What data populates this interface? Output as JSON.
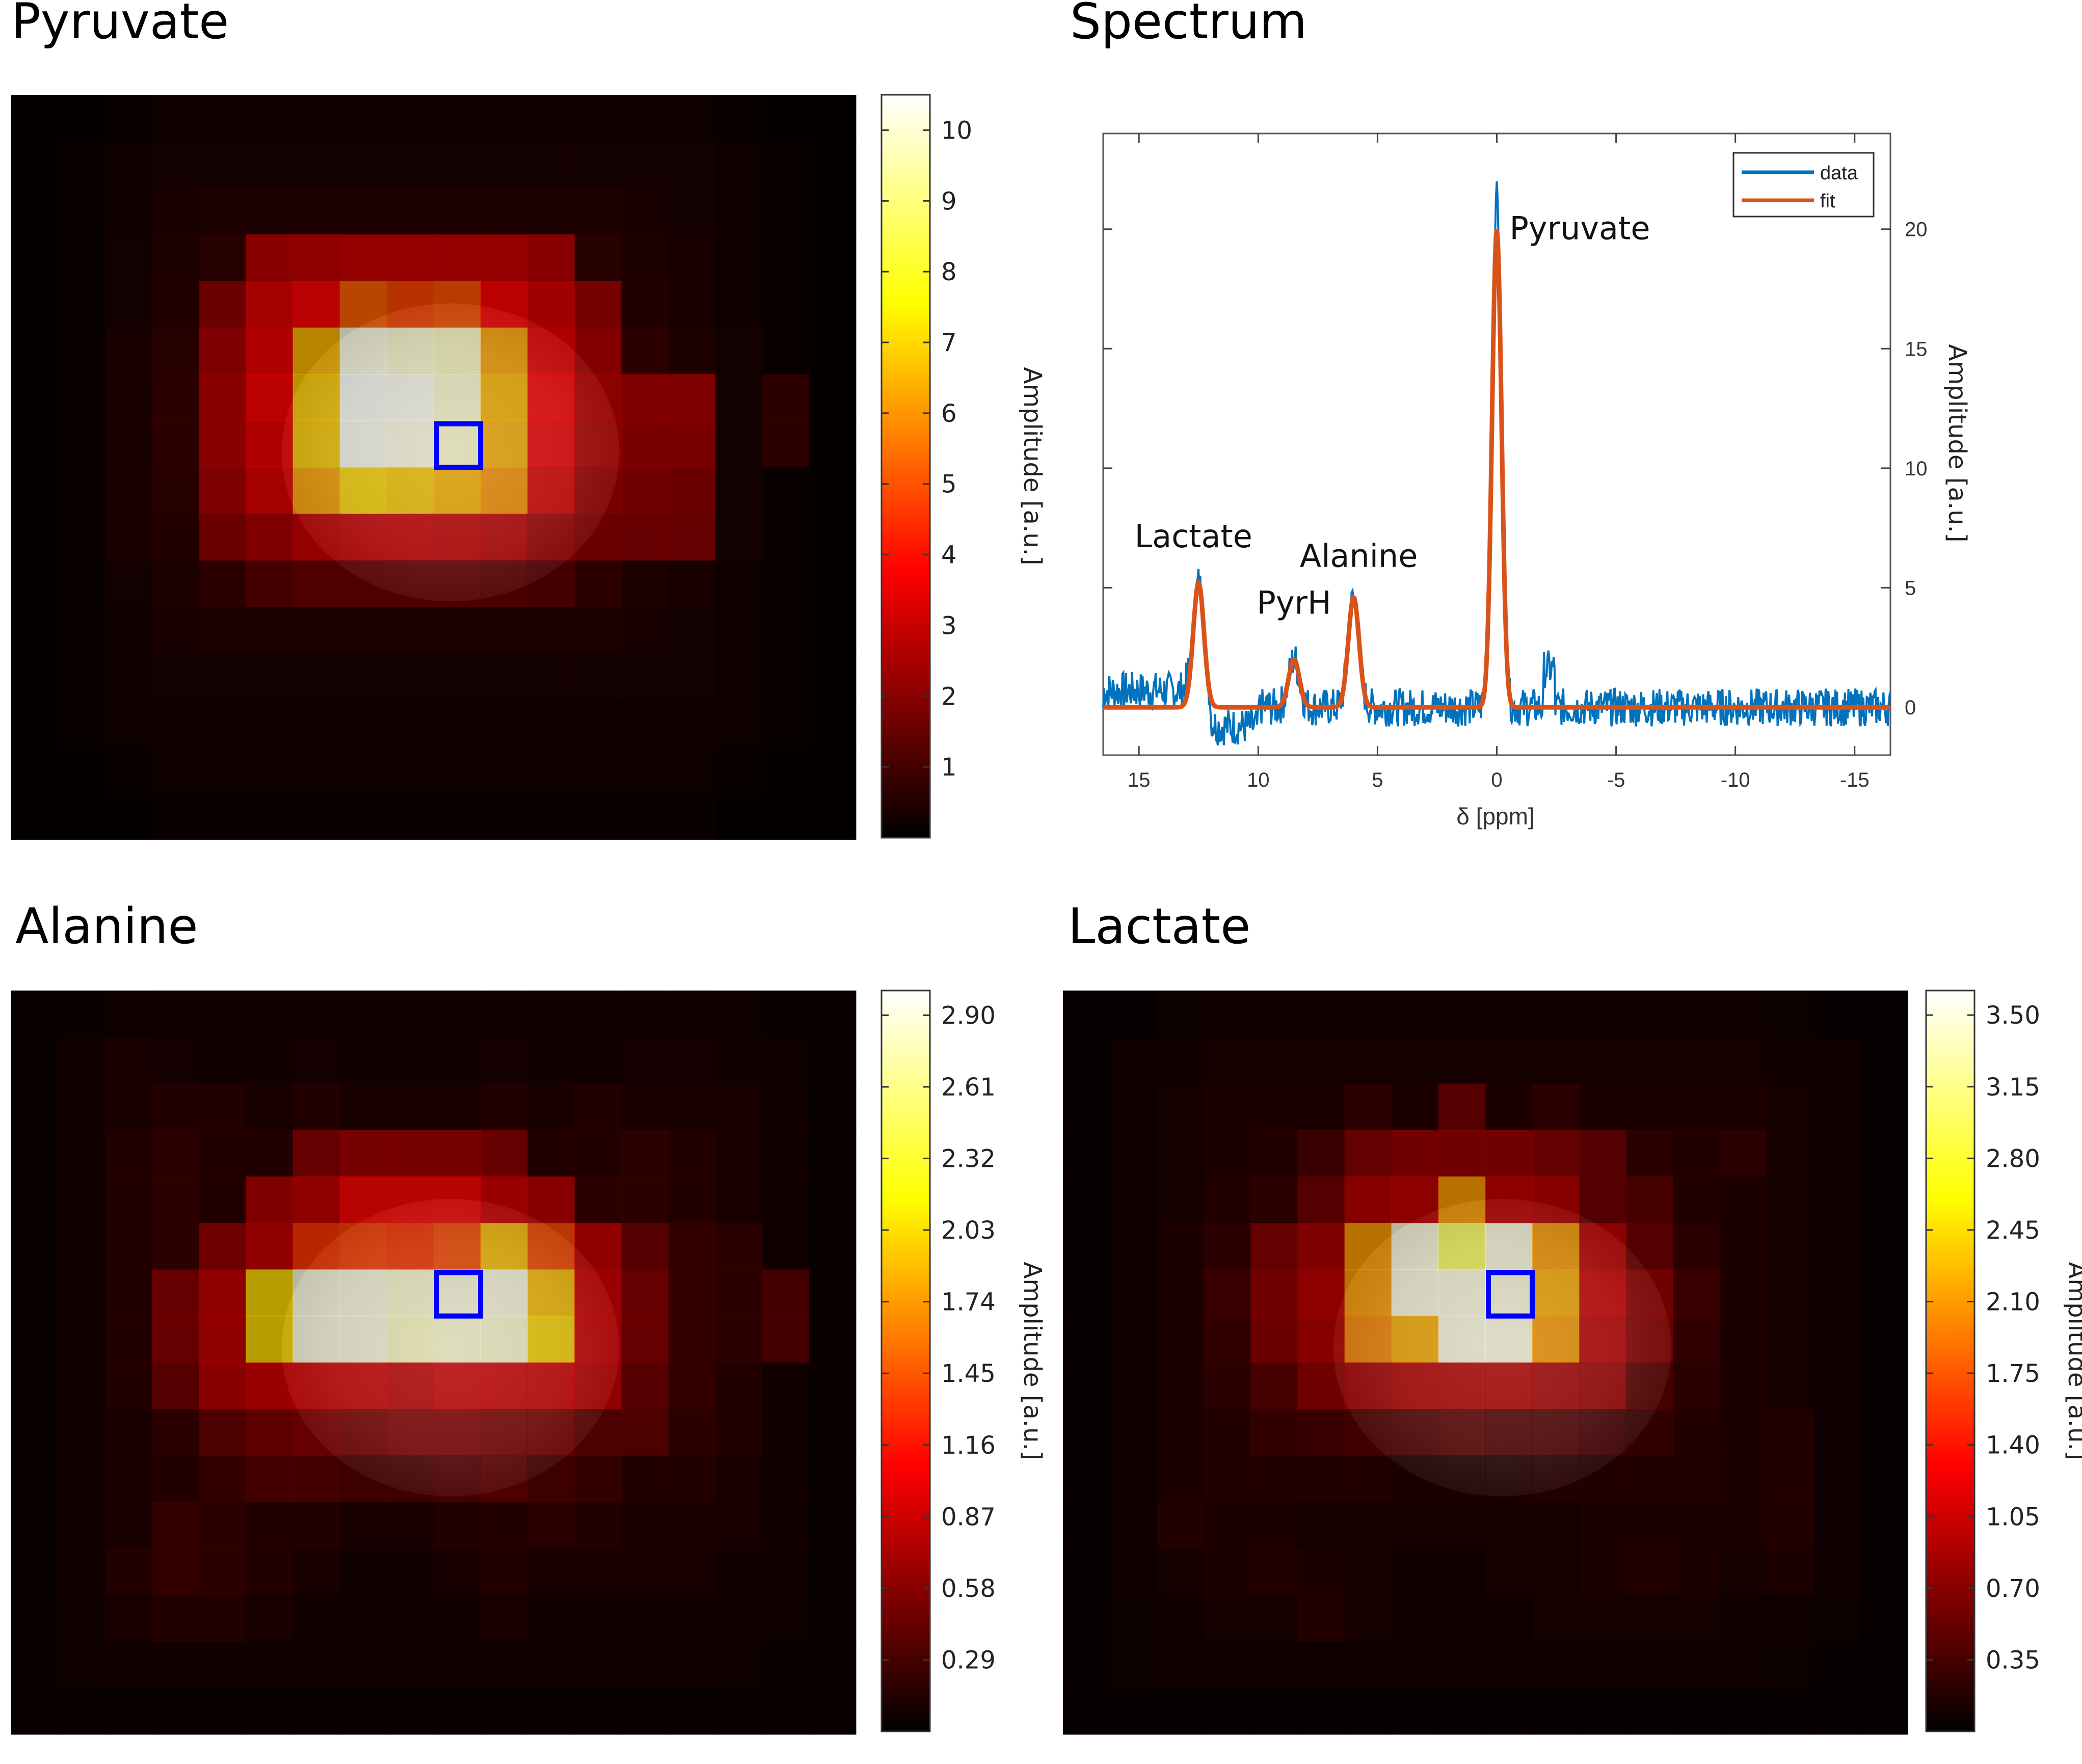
{
  "titles": {
    "pyruvate": "Pyruvate",
    "spectrum": "Spectrum",
    "alanine": "Alanine",
    "lactate": "Lactate"
  },
  "colorbar_label": "Amplitude [a.u.]",
  "colors": {
    "voxel_marker": "#0000ff",
    "data_line": "#0072bd",
    "fit_line": "#d95319"
  },
  "chart_data": [
    {
      "type": "heatmap",
      "title": "Pyruvate",
      "colormap": "hot",
      "colorbar": {
        "label": "Amplitude [a.u.]",
        "ticks": [
          "1",
          "2",
          "3",
          "4",
          "5",
          "6",
          "7",
          "8",
          "9",
          "10"
        ],
        "range": [
          0,
          10.5
        ]
      },
      "grid_size": [
        18,
        16
      ],
      "selected_voxel": {
        "col": 9,
        "row": 7
      },
      "values": [
        [
          0.1,
          0.1,
          0.2,
          0.3,
          0.3,
          0.3,
          0.3,
          0.3,
          0.3,
          0.3,
          0.3,
          0.3,
          0.3,
          0.3,
          0.3,
          0.2,
          0.1,
          0.1
        ],
        [
          0.1,
          0.2,
          0.3,
          0.4,
          0.4,
          0.4,
          0.4,
          0.4,
          0.4,
          0.4,
          0.4,
          0.4,
          0.4,
          0.4,
          0.4,
          0.3,
          0.2,
          0.1
        ],
        [
          0.1,
          0.2,
          0.3,
          0.5,
          0.6,
          0.6,
          0.6,
          0.6,
          0.6,
          0.6,
          0.6,
          0.6,
          0.6,
          0.5,
          0.4,
          0.3,
          0.2,
          0.1
        ],
        [
          0.1,
          0.2,
          0.4,
          0.6,
          0.8,
          2.8,
          2.9,
          3.0,
          3.0,
          3.0,
          3.0,
          2.8,
          0.8,
          0.6,
          0.5,
          0.3,
          0.2,
          0.1
        ],
        [
          0.1,
          0.2,
          0.4,
          0.7,
          2.2,
          3.4,
          3.8,
          5.2,
          4.8,
          5.0,
          3.8,
          3.3,
          2.4,
          0.7,
          0.5,
          0.3,
          0.2,
          0.1
        ],
        [
          0.1,
          0.2,
          0.5,
          0.8,
          2.6,
          3.6,
          6.5,
          10.2,
          10.0,
          9.8,
          6.2,
          3.6,
          2.7,
          0.9,
          0.6,
          0.4,
          0.2,
          0.1
        ],
        [
          0.1,
          0.2,
          0.5,
          0.9,
          2.8,
          3.8,
          6.8,
          10.4,
          10.3,
          10.0,
          6.5,
          3.8,
          2.9,
          2.6,
          2.6,
          0.4,
          0.9,
          0.1
        ],
        [
          0.1,
          0.2,
          0.5,
          0.9,
          2.8,
          3.6,
          6.8,
          10.3,
          10.2,
          9.9,
          6.4,
          3.7,
          2.8,
          2.5,
          2.5,
          0.4,
          0.9,
          0.1
        ],
        [
          0.1,
          0.2,
          0.5,
          0.8,
          2.6,
          3.4,
          6.2,
          7.0,
          6.8,
          6.5,
          6.0,
          3.4,
          2.5,
          2.3,
          2.2,
          0.4,
          0.2,
          0.1
        ],
        [
          0.1,
          0.2,
          0.5,
          0.7,
          2.2,
          2.6,
          3.0,
          3.1,
          3.1,
          3.0,
          2.9,
          2.5,
          2.2,
          2.1,
          2.1,
          0.4,
          0.2,
          0.1
        ],
        [
          0.1,
          0.2,
          0.4,
          0.6,
          0.9,
          1.4,
          1.6,
          1.6,
          1.6,
          1.6,
          1.5,
          1.4,
          0.9,
          0.6,
          0.5,
          0.3,
          0.2,
          0.1
        ],
        [
          0.1,
          0.2,
          0.3,
          0.5,
          0.6,
          0.6,
          0.6,
          0.6,
          0.6,
          0.6,
          0.6,
          0.6,
          0.6,
          0.5,
          0.4,
          0.3,
          0.2,
          0.1
        ],
        [
          0.1,
          0.2,
          0.3,
          0.4,
          0.4,
          0.4,
          0.4,
          0.4,
          0.4,
          0.4,
          0.4,
          0.4,
          0.4,
          0.4,
          0.4,
          0.3,
          0.2,
          0.1
        ],
        [
          0.1,
          0.2,
          0.3,
          0.3,
          0.3,
          0.3,
          0.3,
          0.3,
          0.3,
          0.3,
          0.3,
          0.3,
          0.3,
          0.3,
          0.3,
          0.3,
          0.2,
          0.1
        ],
        [
          0.1,
          0.1,
          0.2,
          0.3,
          0.3,
          0.3,
          0.3,
          0.3,
          0.3,
          0.3,
          0.3,
          0.3,
          0.3,
          0.3,
          0.3,
          0.2,
          0.1,
          0.1
        ],
        [
          0.1,
          0.1,
          0.1,
          0.2,
          0.2,
          0.2,
          0.2,
          0.2,
          0.2,
          0.2,
          0.2,
          0.2,
          0.2,
          0.2,
          0.2,
          0.1,
          0.1,
          0.1
        ]
      ]
    },
    {
      "type": "line",
      "title": "Spectrum",
      "xlabel": "δ [ppm]",
      "ylabel": "Amplitude [a.u.]",
      "xlim": [
        16.5,
        -16.5
      ],
      "ylim": [
        -2,
        24
      ],
      "xticks": [
        "15",
        "10",
        "5",
        "0",
        "-5",
        "-10",
        "-15"
      ],
      "yticks": [
        "0",
        "5",
        "10",
        "15",
        "20"
      ],
      "legend": {
        "position": "top-right",
        "entries": [
          "data",
          "fit"
        ]
      },
      "peaks": [
        {
          "label": "Lactate",
          "ppm": 12.5,
          "amplitude": 5.2
        },
        {
          "label": "PyrH",
          "ppm": 8.5,
          "amplitude": 2.0
        },
        {
          "label": "Alanine",
          "ppm": 6.0,
          "amplitude": 4.6
        },
        {
          "label": "Pyruvate",
          "ppm": 0.0,
          "amplitude": 20.0
        }
      ],
      "series": [
        {
          "name": "data",
          "peak_max": 22.0
        },
        {
          "name": "fit",
          "peak_max": 20.0
        }
      ]
    },
    {
      "type": "heatmap",
      "title": "Alanine",
      "colormap": "hot",
      "colorbar": {
        "label": "Amplitude [a.u.]",
        "ticks": [
          "0.29",
          "0.58",
          "0.87",
          "1.16",
          "1.45",
          "1.74",
          "2.03",
          "2.32",
          "2.61",
          "2.90"
        ],
        "range": [
          0,
          3.0
        ]
      },
      "grid_size": [
        18,
        16
      ],
      "selected_voxel": {
        "col": 9,
        "row": 6
      },
      "values": [
        [
          0.05,
          0.05,
          0.08,
          0.1,
          0.1,
          0.1,
          0.1,
          0.1,
          0.1,
          0.1,
          0.1,
          0.1,
          0.1,
          0.1,
          0.1,
          0.08,
          0.05,
          0.05
        ],
        [
          0.05,
          0.1,
          0.15,
          0.12,
          0.1,
          0.1,
          0.12,
          0.1,
          0.1,
          0.1,
          0.12,
          0.1,
          0.1,
          0.12,
          0.12,
          0.1,
          0.08,
          0.05
        ],
        [
          0.05,
          0.1,
          0.15,
          0.2,
          0.2,
          0.15,
          0.2,
          0.15,
          0.15,
          0.15,
          0.2,
          0.15,
          0.2,
          0.15,
          0.15,
          0.15,
          0.1,
          0.05
        ],
        [
          0.05,
          0.1,
          0.2,
          0.25,
          0.2,
          0.2,
          0.6,
          0.7,
          0.7,
          0.7,
          0.6,
          0.2,
          0.2,
          0.25,
          0.2,
          0.15,
          0.1,
          0.05
        ],
        [
          0.05,
          0.1,
          0.2,
          0.25,
          0.2,
          0.75,
          0.85,
          1.1,
          1.1,
          1.1,
          0.9,
          0.8,
          0.25,
          0.25,
          0.2,
          0.15,
          0.1,
          0.05
        ],
        [
          0.05,
          0.1,
          0.2,
          0.25,
          0.65,
          0.85,
          1.3,
          1.35,
          1.3,
          1.4,
          1.9,
          1.4,
          0.85,
          0.5,
          0.3,
          0.25,
          0.1,
          0.05
        ],
        [
          0.05,
          0.1,
          0.2,
          0.6,
          0.85,
          2.0,
          2.9,
          2.9,
          2.85,
          2.9,
          2.9,
          1.9,
          0.9,
          0.6,
          0.3,
          0.25,
          0.4,
          0.05
        ],
        [
          0.05,
          0.1,
          0.2,
          0.6,
          0.85,
          2.0,
          2.9,
          2.9,
          2.8,
          2.85,
          2.85,
          2.0,
          0.9,
          0.6,
          0.3,
          0.25,
          0.4,
          0.05
        ],
        [
          0.05,
          0.1,
          0.2,
          0.5,
          0.8,
          0.9,
          0.9,
          0.9,
          0.85,
          0.9,
          0.9,
          0.9,
          0.85,
          0.5,
          0.3,
          0.2,
          0.1,
          0.05
        ],
        [
          0.05,
          0.1,
          0.15,
          0.25,
          0.45,
          0.55,
          0.6,
          0.55,
          0.6,
          0.6,
          0.55,
          0.55,
          0.45,
          0.45,
          0.25,
          0.2,
          0.1,
          0.05
        ],
        [
          0.05,
          0.1,
          0.15,
          0.2,
          0.3,
          0.4,
          0.4,
          0.35,
          0.35,
          0.4,
          0.45,
          0.35,
          0.3,
          0.2,
          0.2,
          0.15,
          0.1,
          0.05
        ],
        [
          0.05,
          0.1,
          0.15,
          0.3,
          0.25,
          0.2,
          0.2,
          0.15,
          0.15,
          0.2,
          0.2,
          0.25,
          0.2,
          0.15,
          0.15,
          0.15,
          0.1,
          0.05
        ],
        [
          0.05,
          0.1,
          0.2,
          0.3,
          0.25,
          0.2,
          0.15,
          0.1,
          0.1,
          0.15,
          0.2,
          0.15,
          0.15,
          0.15,
          0.15,
          0.1,
          0.1,
          0.05
        ],
        [
          0.05,
          0.08,
          0.15,
          0.2,
          0.2,
          0.15,
          0.1,
          0.1,
          0.1,
          0.1,
          0.15,
          0.1,
          0.1,
          0.1,
          0.1,
          0.1,
          0.08,
          0.05
        ],
        [
          0.05,
          0.08,
          0.1,
          0.1,
          0.1,
          0.1,
          0.1,
          0.1,
          0.1,
          0.1,
          0.1,
          0.1,
          0.1,
          0.1,
          0.1,
          0.08,
          0.05,
          0.05
        ],
        [
          0.05,
          0.05,
          0.05,
          0.05,
          0.05,
          0.05,
          0.05,
          0.05,
          0.05,
          0.05,
          0.05,
          0.05,
          0.05,
          0.05,
          0.05,
          0.05,
          0.05,
          0.05
        ]
      ]
    },
    {
      "type": "heatmap",
      "title": "Lactate",
      "colormap": "hot",
      "colorbar": {
        "label": "Amplitude [a.u.]",
        "ticks": [
          "0.35",
          "0.70",
          "1.05",
          "1.40",
          "1.75",
          "2.10",
          "2.45",
          "2.80",
          "3.15",
          "3.50"
        ],
        "range": [
          0,
          3.62
        ]
      },
      "grid_size": [
        18,
        16
      ],
      "selected_voxel": {
        "col": 9,
        "row": 6
      },
      "values": [
        [
          0.05,
          0.05,
          0.08,
          0.1,
          0.1,
          0.1,
          0.1,
          0.1,
          0.1,
          0.1,
          0.1,
          0.1,
          0.1,
          0.1,
          0.1,
          0.08,
          0.05,
          0.05
        ],
        [
          0.05,
          0.1,
          0.12,
          0.15,
          0.15,
          0.15,
          0.15,
          0.15,
          0.15,
          0.15,
          0.15,
          0.15,
          0.15,
          0.15,
          0.15,
          0.12,
          0.1,
          0.05
        ],
        [
          0.05,
          0.1,
          0.15,
          0.2,
          0.2,
          0.2,
          0.3,
          0.2,
          0.6,
          0.2,
          0.3,
          0.2,
          0.2,
          0.2,
          0.2,
          0.15,
          0.1,
          0.05
        ],
        [
          0.05,
          0.1,
          0.15,
          0.2,
          0.25,
          0.4,
          0.7,
          0.8,
          0.8,
          0.8,
          0.7,
          0.6,
          0.3,
          0.25,
          0.3,
          0.15,
          0.1,
          0.05
        ],
        [
          0.05,
          0.1,
          0.15,
          0.25,
          0.3,
          0.6,
          0.95,
          1.0,
          2.1,
          1.0,
          0.95,
          0.6,
          0.5,
          0.25,
          0.2,
          0.15,
          0.1,
          0.05
        ],
        [
          0.05,
          0.1,
          0.2,
          0.3,
          0.7,
          0.9,
          2.1,
          3.5,
          3.0,
          3.5,
          2.1,
          1.0,
          0.6,
          0.3,
          0.2,
          0.15,
          0.1,
          0.05
        ],
        [
          0.05,
          0.1,
          0.2,
          0.4,
          0.8,
          1.0,
          2.1,
          3.5,
          3.5,
          3.5,
          2.2,
          1.1,
          0.8,
          0.4,
          0.2,
          0.15,
          0.1,
          0.05
        ],
        [
          0.05,
          0.1,
          0.2,
          0.35,
          0.75,
          0.95,
          2.0,
          2.2,
          3.5,
          3.5,
          2.1,
          1.0,
          0.75,
          0.35,
          0.2,
          0.15,
          0.1,
          0.05
        ],
        [
          0.05,
          0.1,
          0.2,
          0.3,
          0.5,
          0.8,
          0.9,
          0.95,
          0.95,
          0.95,
          0.9,
          0.85,
          0.5,
          0.3,
          0.2,
          0.15,
          0.1,
          0.05
        ],
        [
          0.05,
          0.1,
          0.2,
          0.25,
          0.35,
          0.4,
          0.45,
          0.45,
          0.5,
          0.45,
          0.45,
          0.4,
          0.35,
          0.25,
          0.2,
          0.25,
          0.1,
          0.05
        ],
        [
          0.05,
          0.1,
          0.2,
          0.25,
          0.25,
          0.25,
          0.25,
          0.2,
          0.2,
          0.2,
          0.25,
          0.25,
          0.25,
          0.25,
          0.2,
          0.25,
          0.1,
          0.05
        ],
        [
          0.05,
          0.1,
          0.25,
          0.2,
          0.2,
          0.15,
          0.15,
          0.15,
          0.15,
          0.15,
          0.15,
          0.2,
          0.2,
          0.2,
          0.2,
          0.25,
          0.1,
          0.05
        ],
        [
          0.05,
          0.1,
          0.15,
          0.2,
          0.25,
          0.2,
          0.15,
          0.1,
          0.1,
          0.15,
          0.15,
          0.2,
          0.25,
          0.2,
          0.15,
          0.2,
          0.1,
          0.05
        ],
        [
          0.05,
          0.08,
          0.1,
          0.15,
          0.15,
          0.25,
          0.15,
          0.1,
          0.1,
          0.1,
          0.15,
          0.15,
          0.15,
          0.15,
          0.1,
          0.1,
          0.08,
          0.05
        ],
        [
          0.05,
          0.08,
          0.1,
          0.1,
          0.1,
          0.1,
          0.1,
          0.1,
          0.1,
          0.1,
          0.1,
          0.1,
          0.1,
          0.1,
          0.1,
          0.08,
          0.05,
          0.05
        ],
        [
          0.05,
          0.05,
          0.05,
          0.05,
          0.05,
          0.05,
          0.05,
          0.05,
          0.05,
          0.05,
          0.05,
          0.05,
          0.05,
          0.05,
          0.05,
          0.05,
          0.05,
          0.05
        ]
      ]
    }
  ]
}
